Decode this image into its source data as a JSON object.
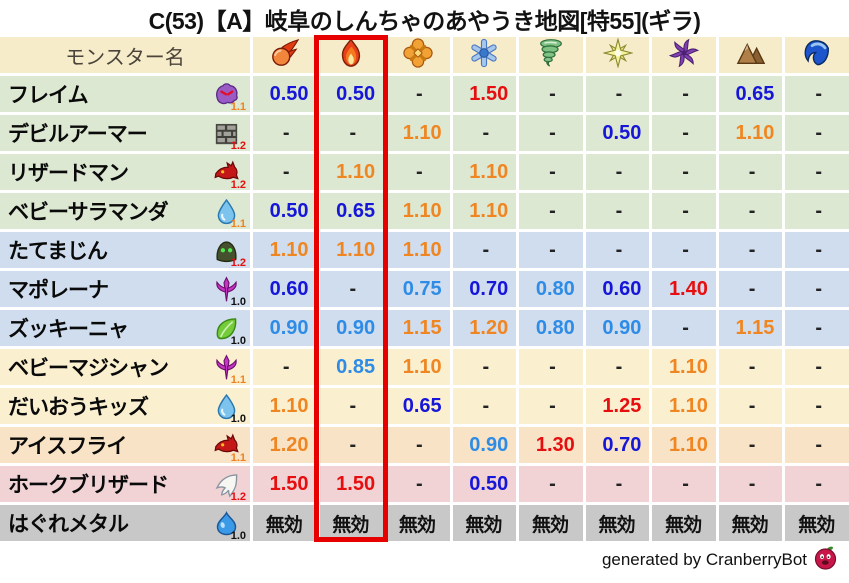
{
  "chart_data": {
    "type": "table",
    "title": "C(53)【A】岐阜のしんちゃのあやうき地図[特55](ギラ)",
    "name_column_header": "モンスター名",
    "element_columns": [
      {
        "icon": "fireball",
        "highlighted": false
      },
      {
        "icon": "flame",
        "highlighted": true
      },
      {
        "icon": "explosion",
        "highlighted": false
      },
      {
        "icon": "snowflake",
        "highlighted": false
      },
      {
        "icon": "tornado",
        "highlighted": false
      },
      {
        "icon": "spark",
        "highlighted": false
      },
      {
        "icon": "pinwheel",
        "highlighted": false
      },
      {
        "icon": "mountain",
        "highlighted": false
      },
      {
        "icon": "wave",
        "highlighted": false
      }
    ],
    "highlighted_column_index": 2,
    "rows": [
      {
        "name": "フレイム",
        "family_icon": "ghost",
        "size_multiplier": "1.1",
        "multiplier_tone": "orange",
        "row_color": "green",
        "cells": [
          {
            "text": "0.50",
            "tone": "resist"
          },
          {
            "text": "0.50",
            "tone": "resist"
          },
          {
            "text": "-",
            "tone": "none"
          },
          {
            "text": "1.50",
            "tone": "severe"
          },
          {
            "text": "-",
            "tone": "none"
          },
          {
            "text": "-",
            "tone": "none"
          },
          {
            "text": "-",
            "tone": "none"
          },
          {
            "text": "0.65",
            "tone": "resist"
          },
          {
            "text": "-",
            "tone": "none"
          }
        ]
      },
      {
        "name": "デビルアーマー",
        "family_icon": "brick",
        "size_multiplier": "1.2",
        "multiplier_tone": "red",
        "row_color": "green",
        "cells": [
          {
            "text": "-",
            "tone": "none"
          },
          {
            "text": "-",
            "tone": "none"
          },
          {
            "text": "1.10",
            "tone": "weak"
          },
          {
            "text": "-",
            "tone": "none"
          },
          {
            "text": "-",
            "tone": "none"
          },
          {
            "text": "0.50",
            "tone": "resist"
          },
          {
            "text": "-",
            "tone": "none"
          },
          {
            "text": "1.10",
            "tone": "weak"
          },
          {
            "text": "-",
            "tone": "none"
          }
        ]
      },
      {
        "name": "リザードマン",
        "family_icon": "dragon",
        "size_multiplier": "1.2",
        "multiplier_tone": "red",
        "row_color": "green",
        "cells": [
          {
            "text": "-",
            "tone": "none"
          },
          {
            "text": "1.10",
            "tone": "weak"
          },
          {
            "text": "-",
            "tone": "none"
          },
          {
            "text": "1.10",
            "tone": "weak"
          },
          {
            "text": "-",
            "tone": "none"
          },
          {
            "text": "-",
            "tone": "none"
          },
          {
            "text": "-",
            "tone": "none"
          },
          {
            "text": "-",
            "tone": "none"
          },
          {
            "text": "-",
            "tone": "none"
          }
        ]
      },
      {
        "name": "ベビーサラマンダ",
        "family_icon": "drop",
        "size_multiplier": "1.1",
        "multiplier_tone": "orange",
        "row_color": "green",
        "cells": [
          {
            "text": "0.50",
            "tone": "resist"
          },
          {
            "text": "0.65",
            "tone": "resist"
          },
          {
            "text": "1.10",
            "tone": "weak"
          },
          {
            "text": "1.10",
            "tone": "weak"
          },
          {
            "text": "-",
            "tone": "none"
          },
          {
            "text": "-",
            "tone": "none"
          },
          {
            "text": "-",
            "tone": "none"
          },
          {
            "text": "-",
            "tone": "none"
          },
          {
            "text": "-",
            "tone": "none"
          }
        ]
      },
      {
        "name": "たてまじん",
        "family_icon": "hood",
        "size_multiplier": "1.2",
        "multiplier_tone": "red",
        "row_color": "blue",
        "cells": [
          {
            "text": "1.10",
            "tone": "weak"
          },
          {
            "text": "1.10",
            "tone": "weak"
          },
          {
            "text": "1.10",
            "tone": "weak"
          },
          {
            "text": "-",
            "tone": "none"
          },
          {
            "text": "-",
            "tone": "none"
          },
          {
            "text": "-",
            "tone": "none"
          },
          {
            "text": "-",
            "tone": "none"
          },
          {
            "text": "-",
            "tone": "none"
          },
          {
            "text": "-",
            "tone": "none"
          }
        ]
      },
      {
        "name": "マポレーナ",
        "family_icon": "trident",
        "size_multiplier": "1.0",
        "multiplier_tone": "black",
        "row_color": "blue",
        "cells": [
          {
            "text": "0.60",
            "tone": "resist"
          },
          {
            "text": "-",
            "tone": "none"
          },
          {
            "text": "0.75",
            "tone": "mild"
          },
          {
            "text": "0.70",
            "tone": "resist"
          },
          {
            "text": "0.80",
            "tone": "mild"
          },
          {
            "text": "0.60",
            "tone": "resist"
          },
          {
            "text": "1.40",
            "tone": "severe"
          },
          {
            "text": "-",
            "tone": "none"
          },
          {
            "text": "-",
            "tone": "none"
          }
        ]
      },
      {
        "name": "ズッキーニャ",
        "family_icon": "leaf",
        "size_multiplier": "1.0",
        "multiplier_tone": "black",
        "row_color": "blue",
        "cells": [
          {
            "text": "0.90",
            "tone": "mild"
          },
          {
            "text": "0.90",
            "tone": "mild"
          },
          {
            "text": "1.15",
            "tone": "weak"
          },
          {
            "text": "1.20",
            "tone": "weak"
          },
          {
            "text": "0.80",
            "tone": "mild"
          },
          {
            "text": "0.90",
            "tone": "mild"
          },
          {
            "text": "-",
            "tone": "none"
          },
          {
            "text": "1.15",
            "tone": "weak"
          },
          {
            "text": "-",
            "tone": "none"
          }
        ]
      },
      {
        "name": "ベビーマジシャン",
        "family_icon": "trident",
        "size_multiplier": "1.1",
        "multiplier_tone": "orange",
        "row_color": "cream",
        "cells": [
          {
            "text": "-",
            "tone": "none"
          },
          {
            "text": "0.85",
            "tone": "mild"
          },
          {
            "text": "1.10",
            "tone": "weak"
          },
          {
            "text": "-",
            "tone": "none"
          },
          {
            "text": "-",
            "tone": "none"
          },
          {
            "text": "-",
            "tone": "none"
          },
          {
            "text": "1.10",
            "tone": "weak"
          },
          {
            "text": "-",
            "tone": "none"
          },
          {
            "text": "-",
            "tone": "none"
          }
        ]
      },
      {
        "name": "だいおうキッズ",
        "family_icon": "drop",
        "size_multiplier": "1.0",
        "multiplier_tone": "black",
        "row_color": "cream",
        "cells": [
          {
            "text": "1.10",
            "tone": "weak"
          },
          {
            "text": "-",
            "tone": "none"
          },
          {
            "text": "0.65",
            "tone": "resist"
          },
          {
            "text": "-",
            "tone": "none"
          },
          {
            "text": "-",
            "tone": "none"
          },
          {
            "text": "1.25",
            "tone": "severe"
          },
          {
            "text": "1.10",
            "tone": "weak"
          },
          {
            "text": "-",
            "tone": "none"
          },
          {
            "text": "-",
            "tone": "none"
          }
        ]
      },
      {
        "name": "アイスフライ",
        "family_icon": "dragon",
        "size_multiplier": "1.1",
        "multiplier_tone": "orange",
        "row_color": "peach",
        "cells": [
          {
            "text": "1.20",
            "tone": "weak"
          },
          {
            "text": "-",
            "tone": "none"
          },
          {
            "text": "-",
            "tone": "none"
          },
          {
            "text": "0.90",
            "tone": "mild"
          },
          {
            "text": "1.30",
            "tone": "severe"
          },
          {
            "text": "0.70",
            "tone": "resist"
          },
          {
            "text": "1.10",
            "tone": "weak"
          },
          {
            "text": "-",
            "tone": "none"
          },
          {
            "text": "-",
            "tone": "none"
          }
        ]
      },
      {
        "name": "ホークブリザード",
        "family_icon": "wing",
        "size_multiplier": "1.2",
        "multiplier_tone": "red",
        "row_color": "pink",
        "cells": [
          {
            "text": "1.50",
            "tone": "severe"
          },
          {
            "text": "1.50",
            "tone": "severe"
          },
          {
            "text": "-",
            "tone": "none"
          },
          {
            "text": "0.50",
            "tone": "resist"
          },
          {
            "text": "-",
            "tone": "none"
          },
          {
            "text": "-",
            "tone": "none"
          },
          {
            "text": "-",
            "tone": "none"
          },
          {
            "text": "-",
            "tone": "none"
          },
          {
            "text": "-",
            "tone": "none"
          }
        ]
      },
      {
        "name": "はぐれメタル",
        "family_icon": "slime",
        "size_multiplier": "1.0",
        "multiplier_tone": "black",
        "row_color": "gray",
        "cells": [
          {
            "text": "無効",
            "tone": "immune"
          },
          {
            "text": "無効",
            "tone": "immune"
          },
          {
            "text": "無効",
            "tone": "immune"
          },
          {
            "text": "無効",
            "tone": "immune"
          },
          {
            "text": "無効",
            "tone": "immune"
          },
          {
            "text": "無効",
            "tone": "immune"
          },
          {
            "text": "無効",
            "tone": "immune"
          },
          {
            "text": "無効",
            "tone": "immune"
          },
          {
            "text": "無効",
            "tone": "immune"
          }
        ]
      }
    ]
  },
  "footer": {
    "credit": "generated by CranberryBot",
    "bot_icon": "cranberry"
  },
  "colors": {
    "strong_resist_value": "#1616d8",
    "mild_resist_value": "#2e8ce6",
    "weakness_value": "#f08622",
    "severe_weakness_value": "#e60e0e",
    "highlight_box": "#e60000",
    "header_background": "#f7ecca"
  }
}
